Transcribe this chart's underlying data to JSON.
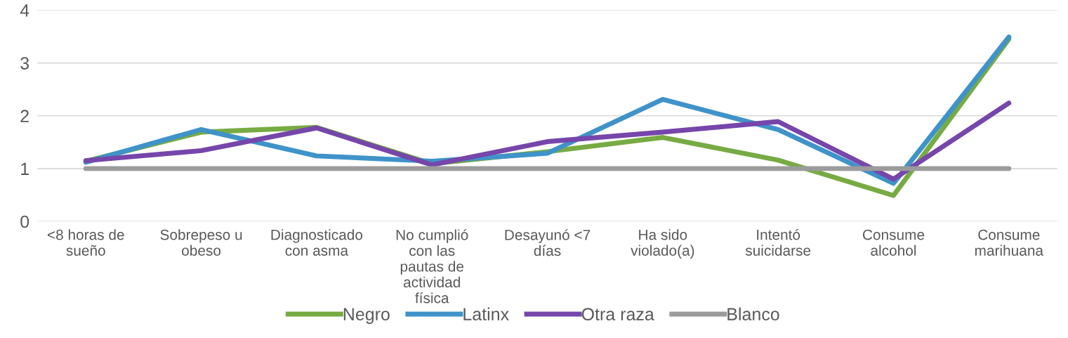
{
  "chart_data": {
    "type": "line",
    "categories": [
      "<8 horas de\nsueño",
      "Sobrepeso u\nobeso",
      "Diagnosticado\ncon asma",
      "No cumplió\ncon las\npautas de\nactividad\nfísica",
      "Desayunó <7\ndías",
      "Ha sido\nviolado(a)",
      "Intentó\nsuicidarse",
      "Consume\nalcohol",
      "Consume\nmarihuana"
    ],
    "series": [
      {
        "name": "Negro",
        "color": "#77ab43",
        "values": [
          1.14,
          1.69,
          1.78,
          1.09,
          1.32,
          1.59,
          1.16,
          0.49,
          3.45
        ]
      },
      {
        "name": "Latinx",
        "color": "#3f93c9",
        "values": [
          1.12,
          1.74,
          1.24,
          1.14,
          1.29,
          2.31,
          1.74,
          0.72,
          3.49
        ]
      },
      {
        "name": "Otra raza",
        "color": "#7646ab",
        "values": [
          1.15,
          1.34,
          1.77,
          1.07,
          1.51,
          1.69,
          1.89,
          0.8,
          2.24
        ]
      },
      {
        "name": "Blanco",
        "color": "#9b9b9b",
        "values": [
          1,
          1,
          1,
          1,
          1,
          1,
          1,
          1,
          1
        ]
      }
    ],
    "ylim": [
      0,
      4
    ],
    "yticks": [
      0,
      1,
      2,
      3,
      4
    ],
    "grid": "y",
    "legend": "bottom",
    "marker": "none",
    "line_style": "solid"
  }
}
